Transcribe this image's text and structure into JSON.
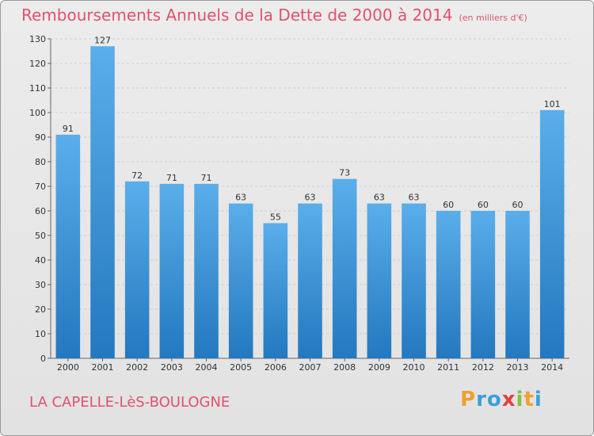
{
  "title": "Remboursements Annuels de la Dette de 2000 à 2014",
  "subtitle": "(en milliers d'€)",
  "location": "LA CAPELLE-LèS-BOULOGNE",
  "brand": "Proxiti",
  "colors": {
    "bar": "#2f86cf",
    "title": "#e0526e",
    "background": "#e6e6e6"
  },
  "chart_data": {
    "type": "bar",
    "categories": [
      "2000",
      "2001",
      "2002",
      "2003",
      "2004",
      "2005",
      "2006",
      "2007",
      "2008",
      "2009",
      "2010",
      "2011",
      "2012",
      "2013",
      "2014"
    ],
    "values": [
      91,
      127,
      72,
      71,
      71,
      63,
      55,
      63,
      73,
      63,
      63,
      60,
      60,
      60,
      101
    ],
    "title": "Remboursements Annuels de la Dette de 2000 à 2014",
    "subtitle": "(en milliers d'€)",
    "ylim": [
      0,
      130
    ],
    "yticks": [
      0,
      10,
      20,
      30,
      40,
      50,
      60,
      70,
      80,
      90,
      100,
      110,
      120,
      130
    ],
    "grid": true,
    "legend": "none"
  }
}
